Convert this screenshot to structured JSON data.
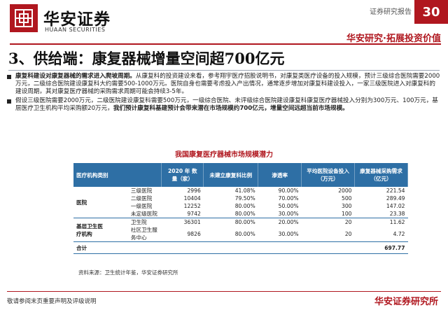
{
  "header": {
    "brand_cn": "华安证券",
    "brand_en": "HUAAN SECURITIES",
    "report_type": "证券研究报告",
    "page_number": "30",
    "slogan": "华安研究·拓展投资价值"
  },
  "title": "3、供给端：康复器械增量空间超700亿元",
  "bullets": [
    {
      "bold_lead": "康复科建设对康复器械的需求进入爬坡周期。",
      "text": "从康复科的投资建设来看，参考翔宇医疗招股说明书，对康复类医疗设备的投入规模，预计三级综合医院需要2000万元，二级综合医院建设康复科大约需要500-1000万元。医院自身也需要考虑投入产出情况，通常逐步增加对康复科建设投入，一家三级医院进入对康复科的建设周期，其对康复医疗器械的采购需求周期可能会持续3-5年。"
    },
    {
      "text": "假设三级医院需要2000万元，二级医院建设康复科需要500万元，一级综合医院、未评级综合医院建设康复科康复医疗器械投入分别为300万元、100万元，基层医疗卫生机构平均采购额20万元，",
      "bold_tail": "我们预计康复科基建预计会带来潜在市场规模约700亿元，增量空间远超当前市场规模。"
    }
  ],
  "table": {
    "title": "我国康复医疗器械市场规模潜力",
    "headers": [
      "医疗机构类别",
      "",
      "2020 年 数 量（家）",
      "未建立康复科比例",
      "渗透率",
      "平均医院设备投入（万元）",
      "康复器械采购需求（亿元）"
    ],
    "groups": [
      {
        "name": "医院",
        "rows": [
          {
            "type": "三级医院",
            "count": "2996",
            "ratio": "41.08%",
            "pen": "90.00%",
            "invest": "2000",
            "demand": "221.54"
          },
          {
            "type": "二级医院",
            "count": "10404",
            "ratio": "79.50%",
            "pen": "70.00%",
            "invest": "500",
            "demand": "289.49"
          },
          {
            "type": "一级医院",
            "count": "12252",
            "ratio": "80.00%",
            "pen": "50.00%",
            "invest": "300",
            "demand": "147.02"
          },
          {
            "type": "未定级医院",
            "count": "9742",
            "ratio": "80.00%",
            "pen": "30.00%",
            "invest": "100",
            "demand": "23.38"
          }
        ]
      },
      {
        "name": "基层卫生医疗机构",
        "rows": [
          {
            "type": "卫生院",
            "count": "36301",
            "ratio": "80.00%",
            "pen": "20.00%",
            "invest": "20",
            "demand": "11.62"
          },
          {
            "type": "社区卫生服务中心",
            "count": "9826",
            "ratio": "80.00%",
            "pen": "30.00%",
            "invest": "20",
            "demand": "4.72"
          }
        ]
      }
    ],
    "total": {
      "label": "合计",
      "demand": "697.77"
    },
    "source": "资料来源：卫生统计年鉴，华安证券研究所"
  },
  "footer": {
    "disclaimer": "敬请参阅末页重要声明及评级说明",
    "brand": "华安证券研究所"
  }
}
